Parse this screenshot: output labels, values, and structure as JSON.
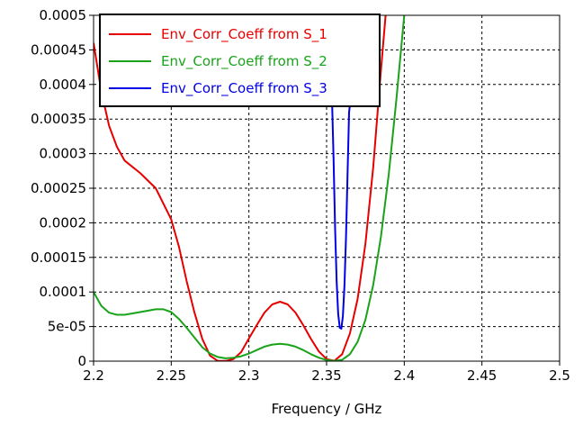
{
  "chart_data": {
    "type": "line",
    "title": "",
    "xlabel": "Frequency / GHz",
    "ylabel": "",
    "xlim": [
      2.2,
      2.5
    ],
    "ylim": [
      0,
      0.0005
    ],
    "grid": true,
    "legend_position": "top-left",
    "x_ticks": [
      {
        "value": 2.2,
        "label": "2.2"
      },
      {
        "value": 2.25,
        "label": "2.25"
      },
      {
        "value": 2.3,
        "label": "2.3"
      },
      {
        "value": 2.35,
        "label": "2.35"
      },
      {
        "value": 2.4,
        "label": "2.4"
      },
      {
        "value": 2.45,
        "label": "2.45"
      },
      {
        "value": 2.5,
        "label": "2.5"
      }
    ],
    "y_ticks": [
      {
        "value": 0,
        "label": "0"
      },
      {
        "value": 5e-05,
        "label": "5e-05"
      },
      {
        "value": 0.0001,
        "label": "0.0001"
      },
      {
        "value": 0.00015,
        "label": "0.00015"
      },
      {
        "value": 0.0002,
        "label": "0.0002"
      },
      {
        "value": 0.00025,
        "label": "0.00025"
      },
      {
        "value": 0.0003,
        "label": "0.0003"
      },
      {
        "value": 0.00035,
        "label": "0.00035"
      },
      {
        "value": 0.0004,
        "label": "0.0004"
      },
      {
        "value": 0.00045,
        "label": "0.00045"
      },
      {
        "value": 0.0005,
        "label": "0.0005"
      }
    ],
    "series": [
      {
        "name": "Env_Corr_Coeff from S_1",
        "color": "#e60000",
        "x": [
          2.2,
          2.205,
          2.21,
          2.215,
          2.22,
          2.23,
          2.24,
          2.25,
          2.255,
          2.26,
          2.265,
          2.27,
          2.275,
          2.28,
          2.285,
          2.29,
          2.295,
          2.3,
          2.305,
          2.31,
          2.315,
          2.32,
          2.325,
          2.33,
          2.335,
          2.34,
          2.345,
          2.35,
          2.355,
          2.36,
          2.365,
          2.37,
          2.375,
          2.38,
          2.385,
          2.388
        ],
        "values": [
          0.00046,
          0.00039,
          0.00034,
          0.00031,
          0.00029,
          0.000272,
          0.00025,
          0.000205,
          0.000165,
          0.000115,
          7e-05,
          3.2e-05,
          8e-06,
          3e-07,
          2e-07,
          3e-06,
          1.3e-05,
          3.3e-05,
          5.2e-05,
          7e-05,
          8.2e-05,
          8.6e-05,
          8.2e-05,
          7e-05,
          5.2e-05,
          3.2e-05,
          1.4e-05,
          3e-06,
          5e-07,
          1e-05,
          4e-05,
          9e-05,
          0.00017,
          0.00028,
          0.00042,
          0.0005
        ]
      },
      {
        "name": "Env_Corr_Coeff from S_2",
        "color": "#1aa31a",
        "x": [
          2.2,
          2.205,
          2.21,
          2.215,
          2.22,
          2.23,
          2.24,
          2.245,
          2.25,
          2.255,
          2.26,
          2.265,
          2.27,
          2.275,
          2.28,
          2.285,
          2.29,
          2.295,
          2.3,
          2.305,
          2.31,
          2.315,
          2.32,
          2.325,
          2.33,
          2.335,
          2.34,
          2.345,
          2.35,
          2.355,
          2.36,
          2.365,
          2.37,
          2.375,
          2.38,
          2.385,
          2.39,
          2.395,
          2.4
        ],
        "values": [
          0.0001,
          8e-05,
          7e-05,
          6.7e-05,
          6.7e-05,
          7.1e-05,
          7.5e-05,
          7.5e-05,
          7.1e-05,
          6.1e-05,
          4.8e-05,
          3.4e-05,
          2e-05,
          1.1e-05,
          6e-06,
          4e-06,
          5e-06,
          7e-06,
          1.1e-05,
          1.6e-05,
          2.1e-05,
          2.4e-05,
          2.5e-05,
          2.4e-05,
          2.1e-05,
          1.6e-05,
          1e-05,
          5e-06,
          1.5e-06,
          3e-07,
          2e-06,
          1e-05,
          2.8e-05,
          6e-05,
          0.00011,
          0.00018,
          0.00027,
          0.00038,
          0.0005
        ]
      },
      {
        "name": "Env_Corr_Coeff from S_3",
        "color": "#0000e6",
        "x": [
          2.3535,
          2.3545,
          2.3555,
          2.3565,
          2.3575,
          2.3585,
          2.3595,
          2.3605,
          2.3615,
          2.3625,
          2.3635,
          2.3645,
          2.3655
        ],
        "values": [
          0.00038,
          0.00029,
          0.00019,
          0.000115,
          6.8e-05,
          4.8e-05,
          4.7e-05,
          6.5e-05,
          0.00011,
          0.00018,
          0.00027,
          0.00036,
          0.00038
        ]
      }
    ]
  }
}
